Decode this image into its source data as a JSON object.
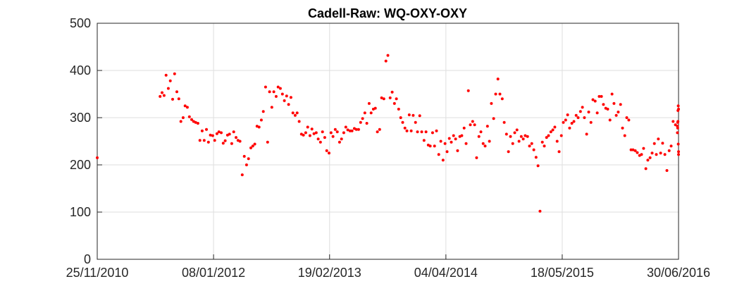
{
  "chart_data": {
    "type": "scatter",
    "title": "Cadell-Raw: WQ-OXY-OXY",
    "xlabel": "",
    "ylabel": "",
    "x_tick_labels": [
      "25/11/2010",
      "08/01/2012",
      "19/02/2013",
      "04/04/2014",
      "18/05/2015",
      "30/06/2016"
    ],
    "x_ticks": [
      "2010-11-25",
      "2012-01-08",
      "2013-02-19",
      "2014-04-04",
      "2015-05-18",
      "2016-06-30"
    ],
    "xlim": [
      "2010-11-25",
      "2016-06-30"
    ],
    "y_tick_labels": [
      "0",
      "100",
      "200",
      "300",
      "400",
      "500"
    ],
    "ylim": [
      0,
      500
    ],
    "grid": true,
    "marker_color": "#ff0000",
    "series": [
      {
        "points": [
          [
            "2010-11-25",
            215
          ],
          [
            "2011-07-04",
            345
          ],
          [
            "2011-07-11",
            353
          ],
          [
            "2011-07-18",
            347
          ],
          [
            "2011-07-25",
            390
          ],
          [
            "2011-08-02",
            362
          ],
          [
            "2011-08-09",
            378
          ],
          [
            "2011-08-17",
            339
          ],
          [
            "2011-08-24",
            393
          ],
          [
            "2011-09-01",
            355
          ],
          [
            "2011-09-08",
            340
          ],
          [
            "2011-09-15",
            292
          ],
          [
            "2011-09-23",
            300
          ],
          [
            "2011-09-30",
            325
          ],
          [
            "2011-10-08",
            322
          ],
          [
            "2011-10-15",
            302
          ],
          [
            "2011-10-23",
            296
          ],
          [
            "2011-10-30",
            292
          ],
          [
            "2011-11-06",
            290
          ],
          [
            "2011-11-14",
            288
          ],
          [
            "2011-11-21",
            252
          ],
          [
            "2011-11-29",
            272
          ],
          [
            "2011-12-06",
            252
          ],
          [
            "2011-12-14",
            275
          ],
          [
            "2011-12-21",
            248
          ],
          [
            "2011-12-28",
            263
          ],
          [
            "2012-01-05",
            262
          ],
          [
            "2012-01-12",
            252
          ],
          [
            "2012-01-20",
            266
          ],
          [
            "2012-01-27",
            270
          ],
          [
            "2012-02-04",
            268
          ],
          [
            "2012-02-11",
            246
          ],
          [
            "2012-02-18",
            251
          ],
          [
            "2012-02-26",
            263
          ],
          [
            "2012-03-04",
            265
          ],
          [
            "2012-03-12",
            245
          ],
          [
            "2012-03-19",
            270
          ],
          [
            "2012-03-27",
            258
          ],
          [
            "2012-04-03",
            252
          ],
          [
            "2012-04-10",
            250
          ],
          [
            "2012-04-18",
            179
          ],
          [
            "2012-04-25",
            218
          ],
          [
            "2012-05-03",
            200
          ],
          [
            "2012-05-10",
            213
          ],
          [
            "2012-05-18",
            236
          ],
          [
            "2012-05-25",
            240
          ],
          [
            "2012-06-01",
            244
          ],
          [
            "2012-06-09",
            282
          ],
          [
            "2012-06-16",
            280
          ],
          [
            "2012-06-24",
            295
          ],
          [
            "2012-07-01",
            313
          ],
          [
            "2012-07-09",
            365
          ],
          [
            "2012-07-16",
            248
          ],
          [
            "2012-07-23",
            355
          ],
          [
            "2012-07-31",
            322
          ],
          [
            "2012-08-07",
            355
          ],
          [
            "2012-08-15",
            345
          ],
          [
            "2012-08-22",
            365
          ],
          [
            "2012-08-30",
            362
          ],
          [
            "2012-09-06",
            350
          ],
          [
            "2012-09-13",
            336
          ],
          [
            "2012-09-21",
            346
          ],
          [
            "2012-09-28",
            328
          ],
          [
            "2012-10-06",
            343
          ],
          [
            "2012-10-13",
            310
          ],
          [
            "2012-10-21",
            305
          ],
          [
            "2012-10-28",
            310
          ],
          [
            "2012-11-04",
            292
          ],
          [
            "2012-11-12",
            265
          ],
          [
            "2012-11-19",
            263
          ],
          [
            "2012-11-27",
            268
          ],
          [
            "2012-12-04",
            280
          ],
          [
            "2012-12-12",
            262
          ],
          [
            "2012-12-19",
            276
          ],
          [
            "2012-12-26",
            266
          ],
          [
            "2013-01-03",
            268
          ],
          [
            "2013-01-10",
            255
          ],
          [
            "2013-01-18",
            248
          ],
          [
            "2013-01-25",
            270
          ],
          [
            "2013-02-02",
            258
          ],
          [
            "2013-02-09",
            230
          ],
          [
            "2013-02-17",
            225
          ],
          [
            "2013-02-24",
            268
          ],
          [
            "2013-03-03",
            260
          ],
          [
            "2013-03-11",
            275
          ],
          [
            "2013-03-18",
            270
          ],
          [
            "2013-03-26",
            248
          ],
          [
            "2013-04-02",
            255
          ],
          [
            "2013-04-10",
            268
          ],
          [
            "2013-04-17",
            280
          ],
          [
            "2013-04-24",
            274
          ],
          [
            "2013-05-02",
            272
          ],
          [
            "2013-05-09",
            272
          ],
          [
            "2013-05-17",
            277
          ],
          [
            "2013-05-24",
            275
          ],
          [
            "2013-06-01",
            275
          ],
          [
            "2013-06-08",
            290
          ],
          [
            "2013-06-15",
            298
          ],
          [
            "2013-06-23",
            310
          ],
          [
            "2013-06-30",
            288
          ],
          [
            "2013-07-08",
            330
          ],
          [
            "2013-07-15",
            310
          ],
          [
            "2013-07-23",
            318
          ],
          [
            "2013-07-30",
            320
          ],
          [
            "2013-08-06",
            270
          ],
          [
            "2013-08-14",
            275
          ],
          [
            "2013-08-21",
            342
          ],
          [
            "2013-08-29",
            340
          ],
          [
            "2013-09-05",
            420
          ],
          [
            "2013-09-12",
            432
          ],
          [
            "2013-09-20",
            342
          ],
          [
            "2013-09-27",
            354
          ],
          [
            "2013-10-05",
            330
          ],
          [
            "2013-10-12",
            340
          ],
          [
            "2013-10-20",
            318
          ],
          [
            "2013-10-27",
            300
          ],
          [
            "2013-11-03",
            290
          ],
          [
            "2013-11-11",
            278
          ],
          [
            "2013-11-18",
            272
          ],
          [
            "2013-11-26",
            306
          ],
          [
            "2013-12-03",
            272
          ],
          [
            "2013-12-10",
            305
          ],
          [
            "2013-12-18",
            290
          ],
          [
            "2013-12-25",
            270
          ],
          [
            "2014-01-02",
            304
          ],
          [
            "2014-01-09",
            270
          ],
          [
            "2014-01-17",
            252
          ],
          [
            "2014-01-24",
            270
          ],
          [
            "2014-02-01",
            242
          ],
          [
            "2014-02-08",
            240
          ],
          [
            "2014-02-16",
            268
          ],
          [
            "2014-02-23",
            240
          ],
          [
            "2014-03-02",
            272
          ],
          [
            "2014-03-10",
            222
          ],
          [
            "2014-03-17",
            250
          ],
          [
            "2014-03-25",
            210
          ],
          [
            "2014-04-01",
            245
          ],
          [
            "2014-04-08",
            228
          ],
          [
            "2014-04-16",
            256
          ],
          [
            "2014-04-23",
            248
          ],
          [
            "2014-05-01",
            262
          ],
          [
            "2014-05-08",
            255
          ],
          [
            "2014-05-15",
            230
          ],
          [
            "2014-05-23",
            260
          ],
          [
            "2014-05-30",
            262
          ],
          [
            "2014-06-07",
            278
          ],
          [
            "2014-06-14",
            245
          ],
          [
            "2014-06-22",
            357
          ],
          [
            "2014-06-29",
            285
          ],
          [
            "2014-07-07",
            292
          ],
          [
            "2014-07-14",
            285
          ],
          [
            "2014-07-21",
            215
          ],
          [
            "2014-07-29",
            260
          ],
          [
            "2014-08-05",
            270
          ],
          [
            "2014-08-13",
            245
          ],
          [
            "2014-08-20",
            240
          ],
          [
            "2014-08-28",
            282
          ],
          [
            "2014-09-04",
            250
          ],
          [
            "2014-09-11",
            330
          ],
          [
            "2014-09-19",
            298
          ],
          [
            "2014-09-26",
            350
          ],
          [
            "2014-10-04",
            382
          ],
          [
            "2014-10-11",
            350
          ],
          [
            "2014-10-19",
            340
          ],
          [
            "2014-10-26",
            290
          ],
          [
            "2014-11-03",
            265
          ],
          [
            "2014-11-10",
            228
          ],
          [
            "2014-11-17",
            260
          ],
          [
            "2014-11-25",
            245
          ],
          [
            "2014-12-02",
            268
          ],
          [
            "2014-12-10",
            274
          ],
          [
            "2014-12-17",
            250
          ],
          [
            "2014-12-25",
            260
          ],
          [
            "2015-01-01",
            255
          ],
          [
            "2015-01-08",
            262
          ],
          [
            "2015-01-16",
            260
          ],
          [
            "2015-01-23",
            240
          ],
          [
            "2015-01-31",
            245
          ],
          [
            "2015-02-07",
            232
          ],
          [
            "2015-02-15",
            216
          ],
          [
            "2015-02-22",
            198
          ],
          [
            "2015-03-01",
            102
          ],
          [
            "2015-03-09",
            248
          ],
          [
            "2015-03-16",
            240
          ],
          [
            "2015-03-24",
            258
          ],
          [
            "2015-03-31",
            262
          ],
          [
            "2015-04-08",
            270
          ],
          [
            "2015-04-15",
            274
          ],
          [
            "2015-04-22",
            280
          ],
          [
            "2015-04-30",
            250
          ],
          [
            "2015-05-07",
            228
          ],
          [
            "2015-05-15",
            262
          ],
          [
            "2015-05-22",
            290
          ],
          [
            "2015-05-30",
            295
          ],
          [
            "2015-06-06",
            306
          ],
          [
            "2015-06-13",
            278
          ],
          [
            "2015-06-21",
            288
          ],
          [
            "2015-06-28",
            292
          ],
          [
            "2015-07-06",
            305
          ],
          [
            "2015-07-13",
            300
          ],
          [
            "2015-07-21",
            313
          ],
          [
            "2015-07-28",
            322
          ],
          [
            "2015-08-04",
            300
          ],
          [
            "2015-08-12",
            265
          ],
          [
            "2015-08-19",
            312
          ],
          [
            "2015-08-27",
            290
          ],
          [
            "2015-09-03",
            338
          ],
          [
            "2015-09-11",
            335
          ],
          [
            "2015-09-18",
            310
          ],
          [
            "2015-09-25",
            345
          ],
          [
            "2015-10-03",
            345
          ],
          [
            "2015-10-10",
            328
          ],
          [
            "2015-10-18",
            320
          ],
          [
            "2015-10-25",
            318
          ],
          [
            "2015-11-02",
            295
          ],
          [
            "2015-11-09",
            350
          ],
          [
            "2015-11-16",
            330
          ],
          [
            "2015-11-24",
            305
          ],
          [
            "2015-12-01",
            312
          ],
          [
            "2015-12-09",
            328
          ],
          [
            "2015-12-16",
            278
          ],
          [
            "2015-12-24",
            262
          ],
          [
            "2015-12-31",
            300
          ],
          [
            "2016-01-07",
            295
          ],
          [
            "2016-01-15",
            232
          ],
          [
            "2016-01-22",
            232
          ],
          [
            "2016-01-30",
            230
          ],
          [
            "2016-02-06",
            226
          ],
          [
            "2016-02-14",
            220
          ],
          [
            "2016-02-21",
            222
          ],
          [
            "2016-02-28",
            235
          ],
          [
            "2016-03-07",
            192
          ],
          [
            "2016-03-14",
            210
          ],
          [
            "2016-03-22",
            215
          ],
          [
            "2016-03-29",
            225
          ],
          [
            "2016-04-06",
            245
          ],
          [
            "2016-04-13",
            222
          ],
          [
            "2016-04-20",
            255
          ],
          [
            "2016-04-28",
            225
          ],
          [
            "2016-05-05",
            246
          ],
          [
            "2016-05-13",
            222
          ],
          [
            "2016-05-20",
            188
          ],
          [
            "2016-05-28",
            230
          ],
          [
            "2016-06-04",
            240
          ],
          [
            "2016-06-11",
            292
          ],
          [
            "2016-06-19",
            285
          ],
          [
            "2016-06-26",
            268
          ],
          [
            "2016-06-26",
            282
          ],
          [
            "2016-06-27",
            278
          ],
          [
            "2016-06-27",
            290
          ],
          [
            "2016-06-28",
            315
          ],
          [
            "2016-06-28",
            292
          ],
          [
            "2016-06-29",
            325
          ],
          [
            "2016-06-29",
            244
          ],
          [
            "2016-06-30",
            228
          ],
          [
            "2016-06-30",
            318
          ],
          [
            "2016-06-30",
            222
          ]
        ]
      }
    ]
  }
}
